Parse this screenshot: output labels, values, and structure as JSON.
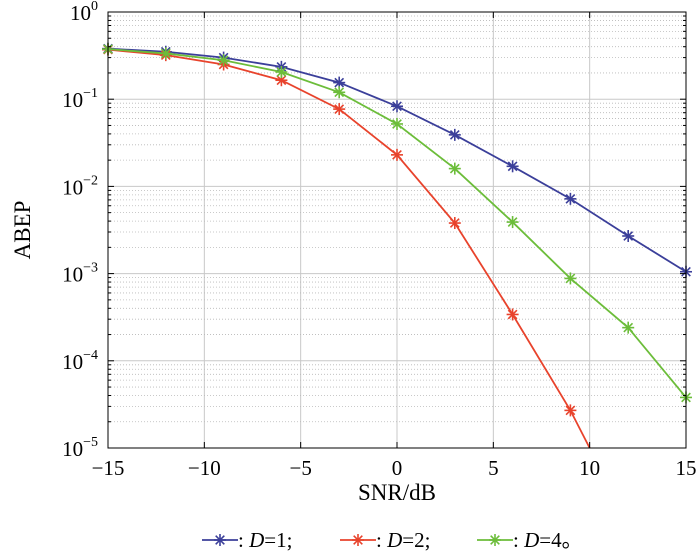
{
  "chart_data": {
    "type": "line",
    "xlabel": "SNR/dB",
    "ylabel": "ABEP",
    "xscale": "linear",
    "yscale": "log",
    "xlim": [
      -15,
      15
    ],
    "ylim": [
      1e-05,
      1
    ],
    "xticks": [
      -15,
      -10,
      -5,
      0,
      5,
      10,
      15
    ],
    "xtick_labels": [
      "−15",
      "−10",
      "−5",
      "0",
      "5",
      "10",
      "15"
    ],
    "ytick_labels": [
      {
        "value": 1,
        "base": "10",
        "exp": "0"
      },
      {
        "value": 0.1,
        "base": "10",
        "exp": "−1"
      },
      {
        "value": 0.01,
        "base": "10",
        "exp": "−2"
      },
      {
        "value": 0.001,
        "base": "10",
        "exp": "−3"
      },
      {
        "value": 0.0001,
        "base": "10",
        "exp": "−4"
      },
      {
        "value": 1e-05,
        "base": "10",
        "exp": "−5"
      }
    ],
    "grid": true,
    "legend_position": "bottom",
    "series": [
      {
        "name": "D=1",
        "legend_prefix": ": ",
        "legend_var": "D",
        "legend_rest": "=1;",
        "color": "#3b3f9a",
        "x": [
          -15,
          -12,
          -9,
          -6,
          -3,
          0,
          3,
          6,
          9,
          12,
          15
        ],
        "y": [
          0.38,
          0.35,
          0.3,
          0.235,
          0.155,
          0.083,
          0.039,
          0.017,
          0.0072,
          0.0027,
          0.00105
        ]
      },
      {
        "name": "D=2",
        "legend_prefix": ": ",
        "legend_var": "D",
        "legend_rest": "=2;",
        "color": "#e8432c",
        "x": [
          -15,
          -12,
          -9,
          -6,
          -3,
          0,
          3,
          6,
          9,
          10
        ],
        "y": [
          0.37,
          0.32,
          0.25,
          0.165,
          0.077,
          0.023,
          0.0038,
          0.00034,
          2.7e-05,
          1e-05
        ]
      },
      {
        "name": "D=4",
        "legend_prefix": ": ",
        "legend_var": "D",
        "legend_rest": "=4。",
        "color": "#6cbd3a",
        "x": [
          -15,
          -12,
          -9,
          -6,
          -3,
          0,
          3,
          6,
          9,
          12,
          15
        ],
        "y": [
          0.375,
          0.335,
          0.28,
          0.205,
          0.12,
          0.052,
          0.016,
          0.0039,
          0.00088,
          0.00024,
          3.8e-05
        ]
      }
    ]
  }
}
